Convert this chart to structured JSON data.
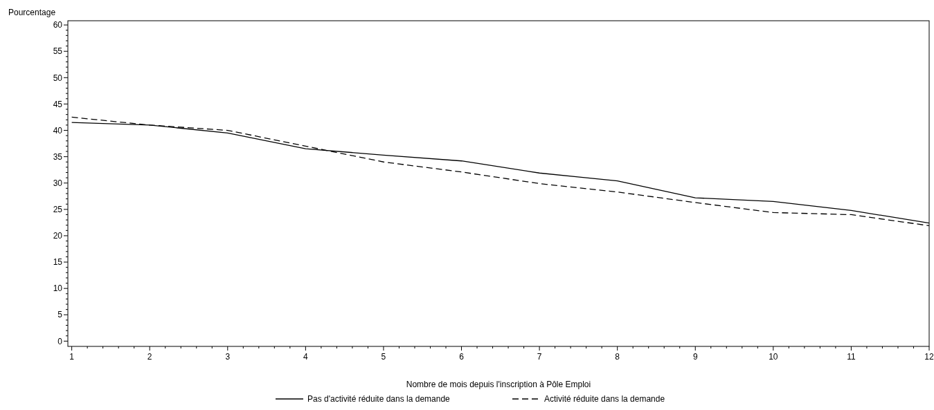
{
  "chart_data": {
    "type": "line",
    "xlabel": "Nombre de mois depuis l'inscription à Pôle Emploi",
    "ylabel": "Pourcentage",
    "x": [
      1,
      2,
      3,
      4,
      5,
      6,
      7,
      8,
      9,
      10,
      11,
      12
    ],
    "series": [
      {
        "name": "Pas d'activité réduite dans la demande",
        "color": "#000000",
        "line_style": "solid",
        "values": [
          41.5,
          41,
          39.5,
          36.5,
          35.3,
          34.2,
          31.9,
          30.4,
          27.2,
          26.5,
          24.8,
          22.4
        ]
      },
      {
        "name": "Activité réduite dans la demande",
        "color": "#000000",
        "line_style": "dashed",
        "values": [
          42.5,
          41,
          40,
          37,
          34,
          32.1,
          29.9,
          28.3,
          26.3,
          24.4,
          24,
          21.9
        ]
      }
    ],
    "xlim": [
      0.95,
      12
    ],
    "xticks": [
      1,
      2,
      3,
      4,
      5,
      6,
      7,
      8,
      9,
      10,
      11,
      12
    ],
    "ylim": [
      -1,
      60.8
    ],
    "yticks": [
      0,
      5,
      10,
      15,
      20,
      25,
      30,
      35,
      40,
      45,
      50,
      55,
      60
    ],
    "grid": false,
    "legend": "bottom",
    "marker": "none"
  }
}
